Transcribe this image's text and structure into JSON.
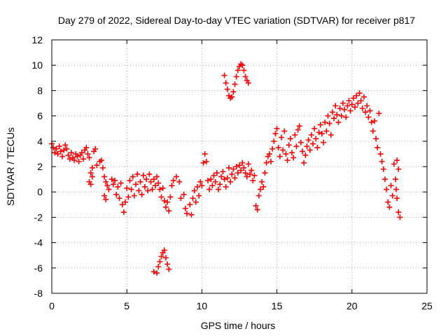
{
  "chart_data": {
    "type": "scatter",
    "title": "Day 279 of 2022, Sidereal Day-to-day VTEC variation (SDTVAR) for receiver p817",
    "xlabel": "GPS time / hours",
    "ylabel": "SDTVAR / TECUs",
    "xlim": [
      0,
      25
    ],
    "ylim": [
      -8,
      12
    ],
    "xticks": [
      0,
      5,
      10,
      15,
      20,
      25
    ],
    "yticks": [
      -8,
      -6,
      -4,
      -2,
      0,
      2,
      4,
      6,
      8,
      10,
      12
    ],
    "grid": true,
    "marker": "+",
    "color": "#ff0000",
    "series": [
      {
        "name": "SDTVAR",
        "points": [
          [
            0.0,
            3.8
          ],
          [
            0.1,
            3.5
          ],
          [
            0.2,
            3.1
          ],
          [
            0.3,
            3.4
          ],
          [
            0.4,
            3.0
          ],
          [
            0.5,
            3.6
          ],
          [
            0.6,
            3.2
          ],
          [
            0.7,
            2.8
          ],
          [
            0.8,
            3.3
          ],
          [
            0.9,
            3.7
          ],
          [
            1.0,
            3.4
          ],
          [
            1.1,
            2.9
          ],
          [
            1.2,
            2.6
          ],
          [
            1.3,
            3.1
          ],
          [
            1.4,
            2.7
          ],
          [
            1.5,
            2.5
          ],
          [
            1.6,
            3.0
          ],
          [
            1.7,
            2.8
          ],
          [
            1.8,
            2.4
          ],
          [
            1.9,
            2.9
          ],
          [
            2.0,
            3.1
          ],
          [
            2.1,
            2.6
          ],
          [
            2.2,
            3.3
          ],
          [
            2.3,
            3.5
          ],
          [
            2.4,
            3.0
          ],
          [
            2.5,
            2.7
          ],
          [
            2.6,
            1.5
          ],
          [
            2.7,
            1.9
          ],
          [
            2.8,
            3.2
          ],
          [
            2.9,
            3.4
          ],
          [
            2.5,
            0.8
          ],
          [
            2.6,
            0.6
          ],
          [
            2.7,
            1.2
          ],
          [
            3.0,
            2.1
          ],
          [
            3.2,
            2.4
          ],
          [
            3.3,
            2.5
          ],
          [
            3.4,
            1.9
          ],
          [
            3.5,
            1.2
          ],
          [
            3.6,
            0.8
          ],
          [
            3.7,
            0.5
          ],
          [
            3.5,
            -0.3
          ],
          [
            3.6,
            -0.6
          ],
          [
            3.8,
            0.2
          ],
          [
            4.0,
            1.0
          ],
          [
            4.1,
            0.6
          ],
          [
            4.2,
            0.9
          ],
          [
            4.3,
            -0.2
          ],
          [
            4.4,
            0.4
          ],
          [
            4.5,
            -0.5
          ],
          [
            4.6,
            0.7
          ],
          [
            4.7,
            -1.0
          ],
          [
            4.8,
            -1.6
          ],
          [
            4.9,
            -0.8
          ],
          [
            5.0,
            0.3
          ],
          [
            5.1,
            -0.4
          ],
          [
            5.2,
            0.9
          ],
          [
            5.3,
            0.2
          ],
          [
            5.4,
            1.2
          ],
          [
            5.5,
            -0.3
          ],
          [
            5.6,
            0.6
          ],
          [
            5.7,
            1.4
          ],
          [
            5.8,
            0.1
          ],
          [
            5.9,
            0.8
          ],
          [
            6.0,
            -0.2
          ],
          [
            6.1,
            1.3
          ],
          [
            6.2,
            0.4
          ],
          [
            6.3,
            1.0
          ],
          [
            6.4,
            0.1
          ],
          [
            6.5,
            1.4
          ],
          [
            6.6,
            0.8
          ],
          [
            6.7,
            0.2
          ],
          [
            6.8,
            1.0
          ],
          [
            6.9,
            0.5
          ],
          [
            7.0,
            1.2
          ],
          [
            7.1,
            0.7
          ],
          [
            7.2,
            0.2
          ],
          [
            7.3,
            -0.4
          ],
          [
            7.4,
            0.3
          ],
          [
            7.5,
            -0.7
          ],
          [
            7.6,
            -1.2
          ],
          [
            7.7,
            -0.8
          ],
          [
            7.8,
            -1.5
          ],
          [
            7.9,
            -0.4
          ],
          [
            8.0,
            0.5
          ],
          [
            8.1,
            0.9
          ],
          [
            8.3,
            1.2
          ],
          [
            8.5,
            0.8
          ],
          [
            8.6,
            -0.5
          ],
          [
            8.8,
            -0.2
          ],
          [
            8.9,
            -1.3
          ],
          [
            9.0,
            -1.7
          ],
          [
            9.2,
            -1.0
          ],
          [
            9.3,
            -1.8
          ],
          [
            9.4,
            -0.5
          ],
          [
            9.5,
            0.1
          ],
          [
            9.6,
            -0.8
          ],
          [
            9.7,
            0.4
          ],
          [
            9.8,
            -0.3
          ],
          [
            9.9,
            0.8
          ],
          [
            10.0,
            0.5
          ],
          [
            10.1,
            2.3
          ],
          [
            10.2,
            3.0
          ],
          [
            10.3,
            2.4
          ],
          [
            10.4,
            0.9
          ],
          [
            10.5,
            0.2
          ],
          [
            10.6,
            1.0
          ],
          [
            10.7,
            0.5
          ],
          [
            10.8,
            1.3
          ],
          [
            10.9,
            0.8
          ],
          [
            11.0,
            1.5
          ],
          [
            11.1,
            0.2
          ],
          [
            11.2,
            0.6
          ],
          [
            11.3,
            1.2
          ],
          [
            11.4,
            1.6
          ],
          [
            11.5,
            1.0
          ],
          [
            11.6,
            0.4
          ],
          [
            11.7,
            1.1
          ],
          [
            11.8,
            1.9
          ],
          [
            11.9,
            0.8
          ],
          [
            12.0,
            1.4
          ],
          [
            12.1,
            1.8
          ],
          [
            12.2,
            1.1
          ],
          [
            12.3,
            2.0
          ],
          [
            12.4,
            1.5
          ],
          [
            12.5,
            2.1
          ],
          [
            12.6,
            1.7
          ],
          [
            12.7,
            2.3
          ],
          [
            12.8,
            1.9
          ],
          [
            12.9,
            1.5
          ],
          [
            13.0,
            1.2
          ],
          [
            13.1,
            2.2
          ],
          [
            13.2,
            1.4
          ],
          [
            13.3,
            1.7
          ],
          [
            13.4,
            0.9
          ],
          [
            13.5,
            1.3
          ],
          [
            11.5,
            9.2
          ],
          [
            11.6,
            8.6
          ],
          [
            11.7,
            8.1
          ],
          [
            11.8,
            7.6
          ],
          [
            11.9,
            7.4
          ],
          [
            12.0,
            7.5
          ],
          [
            12.1,
            7.9
          ],
          [
            12.2,
            8.5
          ],
          [
            12.3,
            9.1
          ],
          [
            12.4,
            9.6
          ],
          [
            12.5,
            9.9
          ],
          [
            12.6,
            10.1
          ],
          [
            12.7,
            10.0
          ],
          [
            12.8,
            9.6
          ],
          [
            12.9,
            9.1
          ],
          [
            13.0,
            8.8
          ],
          [
            13.1,
            8.6
          ],
          [
            6.8,
            -6.3
          ],
          [
            7.0,
            -6.4
          ],
          [
            7.1,
            -5.9
          ],
          [
            7.2,
            -5.5
          ],
          [
            7.3,
            -5.1
          ],
          [
            7.4,
            -4.8
          ],
          [
            7.5,
            -4.6
          ],
          [
            7.6,
            -5.2
          ],
          [
            7.7,
            -5.7
          ],
          [
            7.8,
            -6.1
          ],
          [
            13.6,
            -1.1
          ],
          [
            13.7,
            -1.4
          ],
          [
            13.8,
            -0.3
          ],
          [
            13.9,
            0.2
          ],
          [
            14.0,
            0.8
          ],
          [
            14.1,
            0.4
          ],
          [
            14.2,
            1.5
          ],
          [
            14.3,
            2.3
          ],
          [
            14.4,
            2.8
          ],
          [
            14.5,
            3.0
          ],
          [
            14.6,
            2.4
          ],
          [
            14.7,
            3.4
          ],
          [
            14.8,
            4.0
          ],
          [
            14.9,
            4.6
          ],
          [
            15.0,
            5.0
          ],
          [
            15.1,
            3.5
          ],
          [
            15.2,
            2.8
          ],
          [
            15.3,
            4.3
          ],
          [
            15.4,
            3.3
          ],
          [
            15.5,
            4.8
          ],
          [
            15.6,
            3.0
          ],
          [
            15.7,
            2.5
          ],
          [
            15.8,
            3.7
          ],
          [
            15.9,
            4.2
          ],
          [
            16.0,
            3.1
          ],
          [
            16.1,
            2.7
          ],
          [
            16.2,
            4.5
          ],
          [
            16.3,
            3.6
          ],
          [
            16.4,
            4.9
          ],
          [
            16.5,
            5.2
          ],
          [
            16.6,
            3.9
          ],
          [
            16.7,
            3.2
          ],
          [
            16.8,
            2.3
          ],
          [
            16.9,
            2.9
          ],
          [
            17.0,
            3.6
          ],
          [
            17.1,
            4.1
          ],
          [
            17.2,
            3.3
          ],
          [
            17.3,
            4.5
          ],
          [
            17.4,
            3.8
          ],
          [
            17.5,
            5.0
          ],
          [
            17.6,
            4.2
          ],
          [
            17.7,
            3.5
          ],
          [
            17.8,
            4.7
          ],
          [
            17.9,
            5.3
          ],
          [
            18.0,
            4.6
          ],
          [
            18.1,
            3.9
          ],
          [
            18.2,
            5.5
          ],
          [
            18.3,
            4.8
          ],
          [
            18.4,
            6.0
          ],
          [
            18.5,
            5.4
          ],
          [
            18.6,
            4.5
          ],
          [
            18.7,
            6.3
          ],
          [
            18.8,
            5.8
          ],
          [
            18.9,
            6.8
          ],
          [
            19.0,
            6.1
          ],
          [
            19.1,
            5.5
          ],
          [
            19.2,
            6.6
          ],
          [
            19.3,
            6.0
          ],
          [
            19.4,
            7.0
          ],
          [
            19.5,
            6.5
          ],
          [
            19.6,
            5.9
          ],
          [
            19.7,
            6.8
          ],
          [
            19.8,
            7.2
          ],
          [
            19.9,
            6.4
          ],
          [
            20.0,
            6.9
          ],
          [
            20.1,
            7.4
          ],
          [
            20.2,
            6.7
          ],
          [
            20.3,
            7.6
          ],
          [
            20.4,
            7.0
          ],
          [
            20.5,
            7.8
          ],
          [
            20.6,
            7.2
          ],
          [
            20.7,
            6.6
          ],
          [
            20.8,
            7.5
          ],
          [
            20.9,
            6.3
          ],
          [
            21.0,
            6.8
          ],
          [
            21.1,
            5.9
          ],
          [
            21.2,
            6.4
          ],
          [
            21.3,
            5.5
          ],
          [
            21.4,
            4.8
          ],
          [
            21.5,
            5.6
          ],
          [
            21.6,
            4.2
          ],
          [
            21.7,
            3.5
          ],
          [
            21.8,
            6.2
          ],
          [
            21.9,
            3.0
          ],
          [
            22.0,
            2.4
          ],
          [
            22.1,
            1.8
          ],
          [
            22.2,
            1.0
          ],
          [
            22.3,
            0.2
          ],
          [
            22.4,
            -0.8
          ],
          [
            22.5,
            -1.2
          ],
          [
            22.6,
            0.5
          ],
          [
            22.7,
            -0.3
          ],
          [
            22.8,
            2.2
          ],
          [
            22.9,
            1.0
          ],
          [
            23.0,
            -0.5
          ],
          [
            23.1,
            -1.6
          ],
          [
            23.2,
            -2.0
          ],
          [
            23.0,
            2.5
          ],
          [
            23.1,
            1.8
          ],
          [
            22.95,
            0.2
          ]
        ]
      }
    ]
  }
}
